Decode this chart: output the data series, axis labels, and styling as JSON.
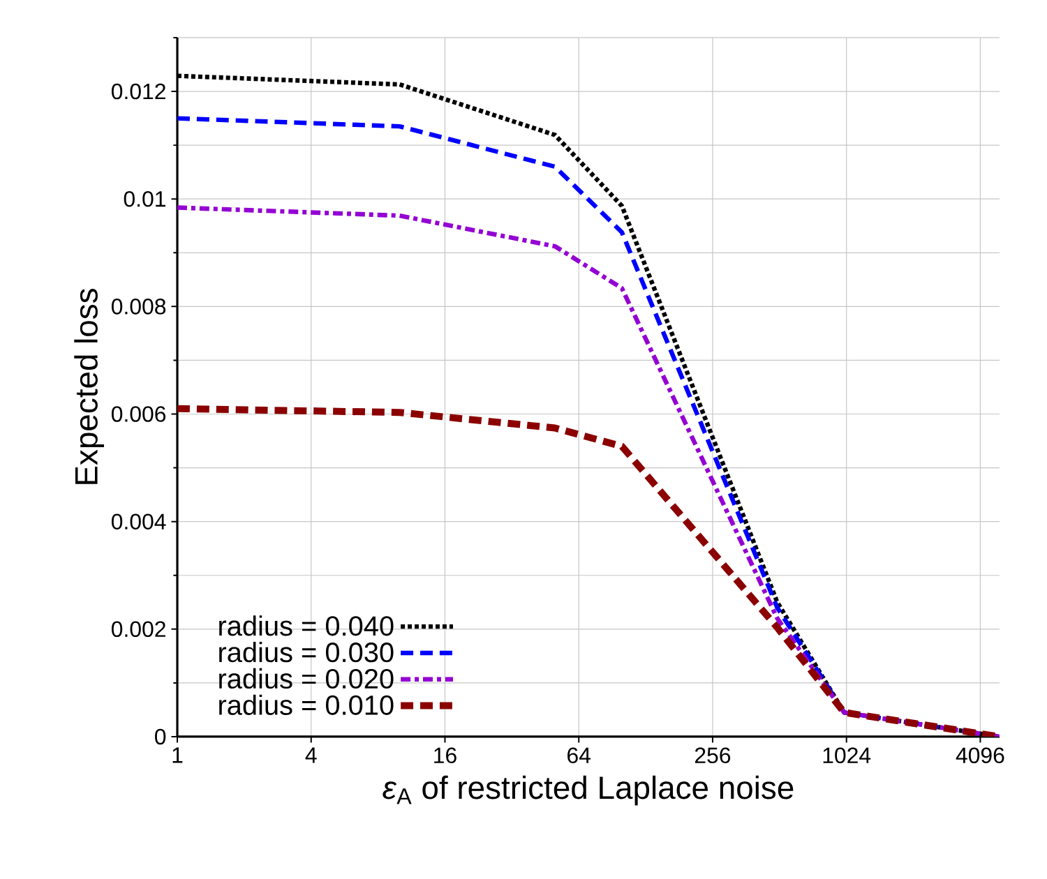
{
  "chart_data": {
    "type": "line",
    "xlabel": "*ε*$_{A}$ of restricted Laplace noise",
    "ylabel": "Expected loss",
    "x": [
      1,
      10,
      50,
      100,
      500,
      1000,
      5000
    ],
    "series": [
      {
        "name": "radius = 0.040",
        "color": "#000000",
        "line_style": "dotted",
        "values": [
          0.01229,
          0.01213,
          0.01119,
          0.00987,
          0.0025,
          0.00045,
          0
        ]
      },
      {
        "name": "radius = 0.030",
        "color": "#0000ff",
        "line_style": "dashed",
        "values": [
          0.0115,
          0.01135,
          0.0106,
          0.00938,
          0.0024,
          0.00045,
          0
        ]
      },
      {
        "name": "radius = 0.020",
        "color": "#9400d3",
        "line_style": "dashdotted",
        "values": [
          0.00984,
          0.00969,
          0.00912,
          0.00834,
          0.0022,
          0.00045,
          0
        ]
      },
      {
        "name": "radius = 0.010",
        "color": "#8b0000",
        "line_style": "dashed",
        "values": [
          0.0061,
          0.00603,
          0.00574,
          0.0054,
          0.00203,
          0.00045,
          0
        ]
      }
    ],
    "log": "x",
    "xlim": [
      1,
      5000
    ],
    "ylim": [
      0,
      0.013
    ],
    "xticks": [
      1,
      4,
      16,
      64,
      256,
      1024,
      4096
    ],
    "yticks": [
      0,
      0.002,
      0.004,
      0.006,
      0.008,
      0.01,
      0.012
    ],
    "grid": true,
    "legend": "bottom left",
    "marker": "none"
  }
}
